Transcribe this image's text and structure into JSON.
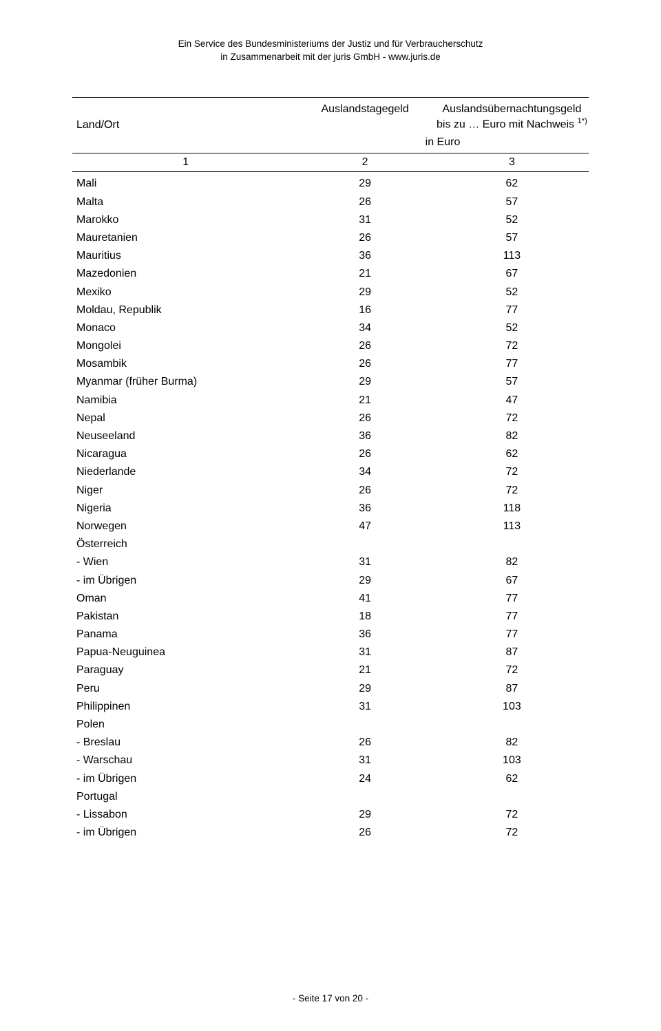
{
  "header": {
    "line1": "Ein Service des Bundesministeriums der Justiz und für Verbraucherschutz",
    "line2": "in Zusammenarbeit mit der juris GmbH - www.juris.de"
  },
  "tableHead": {
    "col1": "Land/Ort",
    "col2": "Auslandstagegeld",
    "col3_line1": "Auslandsübernachtungsgeld",
    "col3_line2_pre": "bis zu … Euro mit Nachweis ",
    "col3_line2_sup": "1*)",
    "inEuro": "in Euro",
    "n1": "1",
    "n2": "2",
    "n3": "3"
  },
  "rows": [
    {
      "c1": "Mali",
      "c2": "29",
      "c3": "62"
    },
    {
      "c1": "Malta",
      "c2": "26",
      "c3": "57"
    },
    {
      "c1": "Marokko",
      "c2": "31",
      "c3": "52"
    },
    {
      "c1": "Mauretanien",
      "c2": "26",
      "c3": "57"
    },
    {
      "c1": "Mauritius",
      "c2": "36",
      "c3": "113"
    },
    {
      "c1": "Mazedonien",
      "c2": "21",
      "c3": "67"
    },
    {
      "c1": "Mexiko",
      "c2": "29",
      "c3": "52"
    },
    {
      "c1": "Moldau, Republik",
      "c2": "16",
      "c3": "77"
    },
    {
      "c1": "Monaco",
      "c2": "34",
      "c3": "52"
    },
    {
      "c1": "Mongolei",
      "c2": "26",
      "c3": "72"
    },
    {
      "c1": "Mosambik",
      "c2": "26",
      "c3": "77"
    },
    {
      "c1": "Myanmar (früher Burma)",
      "c2": "29",
      "c3": "57"
    },
    {
      "c1": "Namibia",
      "c2": "21",
      "c3": "47"
    },
    {
      "c1": "Nepal",
      "c2": "26",
      "c3": "72"
    },
    {
      "c1": "Neuseeland",
      "c2": "36",
      "c3": "82"
    },
    {
      "c1": "Nicaragua",
      "c2": "26",
      "c3": "62"
    },
    {
      "c1": "Niederlande",
      "c2": "34",
      "c3": "72"
    },
    {
      "c1": "Niger",
      "c2": "26",
      "c3": "72"
    },
    {
      "c1": "Nigeria",
      "c2": "36",
      "c3": "118"
    },
    {
      "c1": "Norwegen",
      "c2": "47",
      "c3": "113"
    },
    {
      "c1": "Österreich",
      "c2": "",
      "c3": ""
    },
    {
      "c1": "- Wien",
      "c2": "31",
      "c3": "82"
    },
    {
      "c1": "- im Übrigen",
      "c2": "29",
      "c3": "67"
    },
    {
      "c1": "Oman",
      "c2": "41",
      "c3": "77"
    },
    {
      "c1": "Pakistan",
      "c2": "18",
      "c3": "77"
    },
    {
      "c1": "Panama",
      "c2": "36",
      "c3": "77"
    },
    {
      "c1": "Papua-Neuguinea",
      "c2": "31",
      "c3": "87"
    },
    {
      "c1": "Paraguay",
      "c2": "21",
      "c3": "72"
    },
    {
      "c1": "Peru",
      "c2": "29",
      "c3": "87"
    },
    {
      "c1": "Philippinen",
      "c2": "31",
      "c3": "103"
    },
    {
      "c1": "Polen",
      "c2": "",
      "c3": ""
    },
    {
      "c1": "- Breslau",
      "c2": "26",
      "c3": "82"
    },
    {
      "c1": "- Warschau",
      "c2": "31",
      "c3": "103"
    },
    {
      "c1": "- im Übrigen",
      "c2": "24",
      "c3": "62"
    },
    {
      "c1": "Portugal",
      "c2": "",
      "c3": ""
    },
    {
      "c1": "- Lissabon",
      "c2": "29",
      "c3": "72"
    },
    {
      "c1": "- im Übrigen",
      "c2": "26",
      "c3": "72"
    }
  ],
  "footer": "- Seite 17 von 20 -"
}
